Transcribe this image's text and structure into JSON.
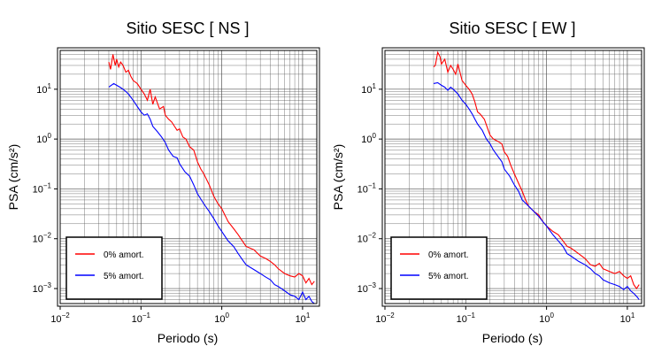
{
  "chart_data": [
    {
      "type": "line",
      "title": "Sitio SESC [ NS ]",
      "xlabel": "Periodo (s)",
      "ylabel": "PSA (cm/s²)",
      "x_scale": "log",
      "y_scale": "log",
      "xlim": [
        0.01,
        15
      ],
      "ylim": [
        0.0005,
        60
      ],
      "x_ticks": [
        {
          "v": 0.01,
          "b": "10",
          "e": "−2"
        },
        {
          "v": 0.1,
          "b": "10",
          "e": "−1"
        },
        {
          "v": 1,
          "b": "10",
          "e": "0"
        },
        {
          "v": 10,
          "b": "10",
          "e": "1"
        }
      ],
      "y_ticks": [
        {
          "v": 0.001,
          "b": "10",
          "e": "−3"
        },
        {
          "v": 0.01,
          "b": "10",
          "e": "−2"
        },
        {
          "v": 0.1,
          "b": "10",
          "e": "−1"
        },
        {
          "v": 1,
          "b": "10",
          "e": "0"
        },
        {
          "v": 10,
          "b": "10",
          "e": "1"
        }
      ],
      "grid": true,
      "legend_position": "bottom-left",
      "series": [
        {
          "name": "0% amort.",
          "color": "#ff0000",
          "x": [
            0.04,
            0.042,
            0.045,
            0.048,
            0.05,
            0.053,
            0.056,
            0.06,
            0.065,
            0.07,
            0.075,
            0.08,
            0.09,
            0.1,
            0.11,
            0.12,
            0.13,
            0.14,
            0.15,
            0.17,
            0.19,
            0.2,
            0.22,
            0.24,
            0.26,
            0.28,
            0.3,
            0.33,
            0.36,
            0.4,
            0.45,
            0.5,
            0.55,
            0.6,
            0.7,
            0.8,
            0.9,
            1.0,
            1.2,
            1.4,
            1.6,
            1.8,
            2.0,
            2.5,
            3.0,
            3.5,
            4.0,
            4.5,
            5.0,
            6.0,
            7.0,
            8.0,
            9.0,
            10.0,
            11.0,
            12.0,
            13.0,
            14.0
          ],
          "y": [
            35,
            25,
            50,
            30,
            40,
            28,
            35,
            30,
            22,
            24,
            18,
            15,
            13,
            10,
            8,
            6,
            10,
            5,
            7,
            4,
            4.5,
            3,
            2.5,
            2.2,
            1.8,
            1.5,
            1.6,
            1.1,
            1.0,
            0.7,
            0.6,
            0.35,
            0.25,
            0.2,
            0.12,
            0.07,
            0.05,
            0.04,
            0.022,
            0.016,
            0.012,
            0.009,
            0.007,
            0.006,
            0.0045,
            0.004,
            0.0035,
            0.003,
            0.0025,
            0.002,
            0.0018,
            0.0017,
            0.002,
            0.0018,
            0.0013,
            0.0016,
            0.0012,
            0.0014
          ]
        },
        {
          "name": "5% amort.",
          "color": "#0000ff",
          "x": [
            0.04,
            0.043,
            0.046,
            0.05,
            0.055,
            0.06,
            0.065,
            0.07,
            0.08,
            0.09,
            0.1,
            0.11,
            0.12,
            0.13,
            0.14,
            0.16,
            0.18,
            0.2,
            0.22,
            0.25,
            0.28,
            0.3,
            0.35,
            0.4,
            0.45,
            0.5,
            0.6,
            0.7,
            0.8,
            0.9,
            1.0,
            1.2,
            1.4,
            1.6,
            1.8,
            2.0,
            2.5,
            3.0,
            3.5,
            4.0,
            4.5,
            5.0,
            6.0,
            7.0,
            8.0,
            9.0,
            10.0,
            11.0,
            12.0,
            13.0,
            14.0
          ],
          "y": [
            11,
            12,
            13,
            12,
            11,
            10,
            9,
            8,
            6,
            4.5,
            3.5,
            3.0,
            3.2,
            2.5,
            1.8,
            1.4,
            1.1,
            0.85,
            0.6,
            0.45,
            0.42,
            0.32,
            0.22,
            0.18,
            0.12,
            0.08,
            0.05,
            0.035,
            0.025,
            0.018,
            0.014,
            0.009,
            0.007,
            0.005,
            0.0038,
            0.003,
            0.0024,
            0.002,
            0.0017,
            0.0015,
            0.0012,
            0.0011,
            0.0009,
            0.00075,
            0.0007,
            0.0006,
            0.00085,
            0.0006,
            0.0007,
            0.00055,
            0.0005
          ]
        }
      ]
    },
    {
      "type": "line",
      "title": "Sitio SESC [ EW ]",
      "xlabel": "Periodo (s)",
      "ylabel": "PSA (cm/s²)",
      "x_scale": "log",
      "y_scale": "log",
      "xlim": [
        0.01,
        15
      ],
      "ylim": [
        0.0005,
        60
      ],
      "x_ticks": [
        {
          "v": 0.01,
          "b": "10",
          "e": "−2"
        },
        {
          "v": 0.1,
          "b": "10",
          "e": "−1"
        },
        {
          "v": 1,
          "b": "10",
          "e": "0"
        },
        {
          "v": 10,
          "b": "10",
          "e": "1"
        }
      ],
      "y_ticks": [
        {
          "v": 0.001,
          "b": "10",
          "e": "−3"
        },
        {
          "v": 0.01,
          "b": "10",
          "e": "−2"
        },
        {
          "v": 0.1,
          "b": "10",
          "e": "−1"
        },
        {
          "v": 1,
          "b": "10",
          "e": "0"
        },
        {
          "v": 10,
          "b": "10",
          "e": "1"
        }
      ],
      "grid": true,
      "legend_position": "bottom-left",
      "series": [
        {
          "name": "0% amort.",
          "color": "#ff0000",
          "x": [
            0.04,
            0.042,
            0.045,
            0.048,
            0.05,
            0.055,
            0.06,
            0.065,
            0.07,
            0.075,
            0.08,
            0.09,
            0.1,
            0.11,
            0.12,
            0.13,
            0.14,
            0.15,
            0.17,
            0.19,
            0.2,
            0.22,
            0.25,
            0.28,
            0.3,
            0.33,
            0.36,
            0.4,
            0.45,
            0.5,
            0.55,
            0.6,
            0.7,
            0.8,
            0.9,
            1.0,
            1.2,
            1.4,
            1.6,
            1.8,
            2.0,
            2.5,
            3.0,
            3.5,
            4.0,
            4.5,
            5.0,
            6.0,
            7.0,
            8.0,
            9.0,
            10.0,
            11.0,
            12.0,
            13.0,
            14.0
          ],
          "y": [
            28,
            30,
            55,
            45,
            32,
            40,
            22,
            30,
            25,
            20,
            32,
            15,
            12,
            10,
            8,
            5.5,
            3.5,
            3.2,
            2.5,
            1.5,
            1.2,
            1.0,
            0.9,
            0.8,
            0.55,
            0.45,
            0.3,
            0.2,
            0.13,
            0.09,
            0.06,
            0.045,
            0.035,
            0.03,
            0.022,
            0.018,
            0.014,
            0.012,
            0.009,
            0.007,
            0.0065,
            0.005,
            0.004,
            0.003,
            0.0028,
            0.0032,
            0.0025,
            0.0022,
            0.002,
            0.0022,
            0.0018,
            0.0016,
            0.0018,
            0.0012,
            0.001,
            0.0012
          ]
        },
        {
          "name": "5% amort.",
          "color": "#0000ff",
          "x": [
            0.04,
            0.045,
            0.05,
            0.055,
            0.06,
            0.065,
            0.07,
            0.08,
            0.09,
            0.1,
            0.11,
            0.12,
            0.13,
            0.14,
            0.16,
            0.18,
            0.2,
            0.22,
            0.25,
            0.28,
            0.3,
            0.35,
            0.4,
            0.45,
            0.5,
            0.6,
            0.7,
            0.8,
            0.9,
            1.0,
            1.2,
            1.4,
            1.6,
            1.8,
            2.0,
            2.5,
            3.0,
            3.5,
            4.0,
            4.5,
            5.0,
            6.0,
            7.0,
            8.0,
            9.0,
            10.0,
            11.0,
            12.0,
            13.0,
            14.0
          ],
          "y": [
            13,
            13.5,
            12,
            11,
            9.5,
            11,
            10,
            8,
            6,
            5,
            4,
            3.2,
            2.5,
            2.0,
            1.5,
            1.0,
            0.8,
            0.6,
            0.45,
            0.35,
            0.25,
            0.18,
            0.12,
            0.09,
            0.06,
            0.045,
            0.035,
            0.028,
            0.022,
            0.018,
            0.012,
            0.009,
            0.007,
            0.005,
            0.0045,
            0.0035,
            0.003,
            0.0025,
            0.002,
            0.0018,
            0.0015,
            0.0013,
            0.0012,
            0.0011,
            0.00095,
            0.0011,
            0.0009,
            0.0008,
            0.0007,
            0.0006
          ]
        }
      ]
    }
  ]
}
